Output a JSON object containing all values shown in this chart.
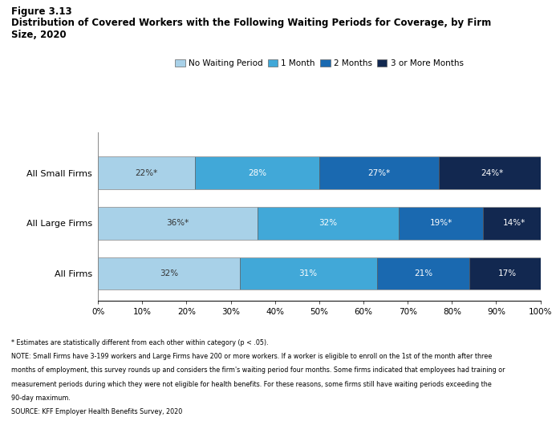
{
  "title_line1": "Figure 3.13",
  "title_line2": "Distribution of Covered Workers with the Following Waiting Periods for Coverage, by Firm",
  "title_line3": "Size, 2020",
  "categories": [
    "All Small Firms",
    "All Large Firms",
    "All Firms"
  ],
  "series": {
    "No Waiting Period": [
      22,
      36,
      32
    ],
    "1 Month": [
      28,
      32,
      31
    ],
    "2 Months": [
      27,
      19,
      21
    ],
    "3 or More Months": [
      24,
      14,
      17
    ]
  },
  "labels": {
    "No Waiting Period": [
      "22%*",
      "36%*",
      "32%"
    ],
    "1 Month": [
      "28%",
      "32%",
      "31%"
    ],
    "2 Months": [
      "27%*",
      "19%*",
      "21%"
    ],
    "3 or More Months": [
      "24%*",
      "14%*",
      "17%"
    ]
  },
  "colors": {
    "No Waiting Period": "#a8d1e8",
    "1 Month": "#41a8d8",
    "2 Months": "#1a69b0",
    "3 or More Months": "#122850"
  },
  "xlim": [
    0,
    100
  ],
  "xticks": [
    0,
    10,
    20,
    30,
    40,
    50,
    60,
    70,
    80,
    90,
    100
  ],
  "xtick_labels": [
    "0%",
    "10%",
    "20%",
    "30%",
    "40%",
    "50%",
    "60%",
    "70%",
    "80%",
    "90%",
    "100%"
  ],
  "bar_height": 0.65,
  "background_color": "white",
  "footnotes": [
    "* Estimates are statistically different from each other within category (p < .05).",
    "NOTE: Small Firms have 3-199 workers and Large Firms have 200 or more workers. If a worker is eligible to enroll on the 1st of the month after three",
    "months of employment, this survey rounds up and considers the firm's waiting period four months. Some firms indicated that employees had training or",
    "measurement periods during which they were not eligible for health benefits. For these reasons, some firms still have waiting periods exceeding the",
    "90-day maximum.",
    "SOURCE: KFF Employer Health Benefits Survey, 2020"
  ]
}
